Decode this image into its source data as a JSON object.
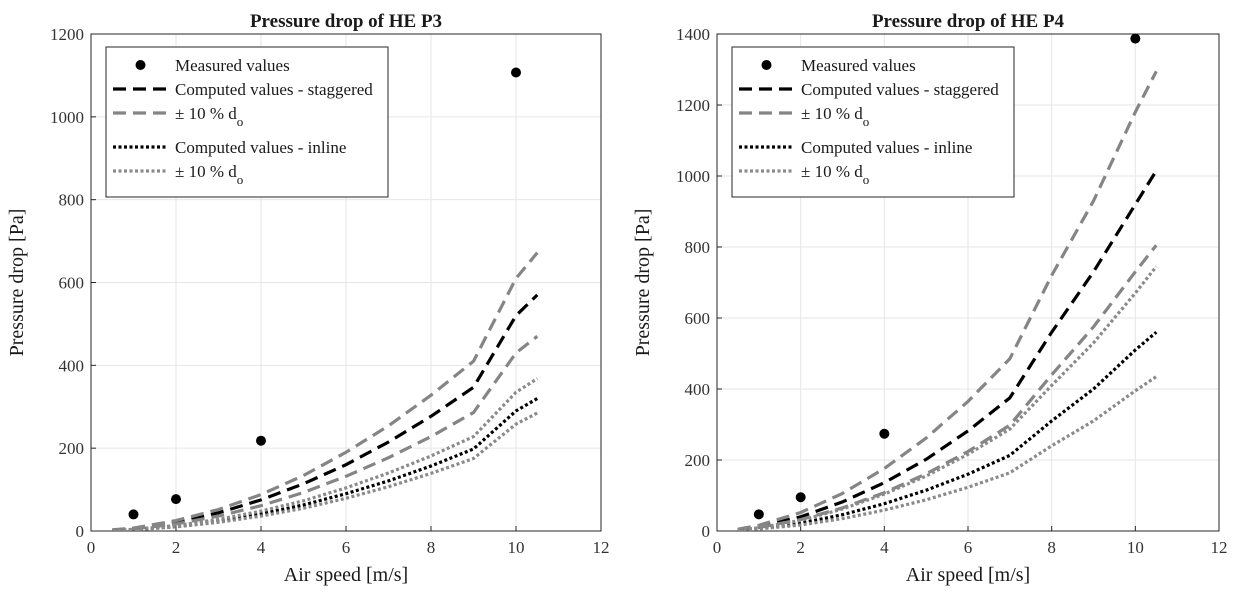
{
  "chart_data": [
    {
      "type": "line",
      "title": "Pressure drop of HE P3",
      "xlabel": "Air speed [m/s]",
      "ylabel": "Pressure drop [Pa]",
      "xlim": [
        0,
        12
      ],
      "ylim": [
        0,
        1200
      ],
      "xticks": [
        0,
        2,
        4,
        6,
        8,
        10,
        12
      ],
      "yticks": [
        0,
        200,
        400,
        600,
        800,
        1000,
        1200
      ],
      "grid": true,
      "legend_position": "top-left",
      "measured": {
        "x": [
          1,
          2,
          4,
          10
        ],
        "y": [
          40,
          77,
          218,
          1107
        ]
      },
      "curve_x": [
        0.5,
        1,
        2,
        3,
        4,
        5,
        6,
        7,
        8,
        9,
        10,
        10.5
      ],
      "series": [
        {
          "key": "stag",
          "y": [
            2,
            6,
            21,
            44,
            75,
            114,
            160,
            215,
            277,
            347,
            520,
            570
          ]
        },
        {
          "key": "stag_hi",
          "y": [
            3,
            7,
            25,
            52,
            88,
            134,
            190,
            254,
            328,
            410,
            610,
            672
          ]
        },
        {
          "key": "stag_lo",
          "y": [
            2,
            5,
            17,
            36,
            61,
            93,
            132,
            177,
            228,
            286,
            430,
            470
          ]
        },
        {
          "key": "inl",
          "y": [
            1,
            3,
            11,
            24,
            41,
            63,
            90,
            121,
            157,
            198,
            290,
            320
          ]
        },
        {
          "key": "inl_hi",
          "y": [
            1,
            4,
            13,
            28,
            48,
            73,
            104,
            140,
            181,
            228,
            335,
            368
          ]
        },
        {
          "key": "inl_lo",
          "y": [
            1,
            3,
            10,
            21,
            36,
            55,
            79,
            107,
            139,
            175,
            258,
            285
          ]
        }
      ]
    },
    {
      "type": "line",
      "title": "Pressure drop of HE P4",
      "xlabel": "Air speed [m/s]",
      "ylabel": "Pressure drop [Pa]",
      "xlim": [
        0,
        12
      ],
      "ylim": [
        0,
        1400
      ],
      "xticks": [
        0,
        2,
        4,
        6,
        8,
        10,
        12
      ],
      "yticks": [
        0,
        200,
        400,
        600,
        800,
        1000,
        1200,
        1400
      ],
      "grid": true,
      "legend_position": "top-left",
      "measured": {
        "x": [
          1,
          2,
          4,
          10
        ],
        "y": [
          47,
          95,
          274,
          1387
        ]
      },
      "curve_x": [
        0.5,
        1,
        2,
        3,
        4,
        5,
        6,
        7,
        8,
        9,
        10,
        10.5
      ],
      "series": [
        {
          "key": "stag",
          "y": [
            4,
            12,
            40,
            82,
            136,
            202,
            282,
            375,
            560,
            730,
            920,
            1015
          ]
        },
        {
          "key": "stag_hi",
          "y": [
            5,
            16,
            52,
            106,
            176,
            262,
            365,
            485,
            720,
            930,
            1180,
            1295
          ]
        },
        {
          "key": "stag_lo",
          "y": [
            3,
            10,
            32,
            65,
            108,
            161,
            224,
            298,
            440,
            575,
            730,
            805
          ]
        },
        {
          "key": "inl",
          "y": [
            2,
            7,
            22,
            46,
            77,
            115,
            160,
            213,
            310,
            400,
            510,
            560
          ]
        },
        {
          "key": "inl_hi",
          "y": [
            3,
            9,
            30,
            62,
            104,
            155,
            216,
            287,
            410,
            530,
            670,
            745
          ]
        },
        {
          "key": "inl_lo",
          "y": [
            2,
            6,
            17,
            35,
            59,
            88,
            123,
            164,
            240,
            310,
            395,
            435
          ]
        }
      ]
    }
  ],
  "legend": {
    "measured": "Measured values",
    "staggered": "Computed values - staggered",
    "tol_prefix": "± 10 % d",
    "tol_sub": "o",
    "inline": "Computed values - inline"
  }
}
